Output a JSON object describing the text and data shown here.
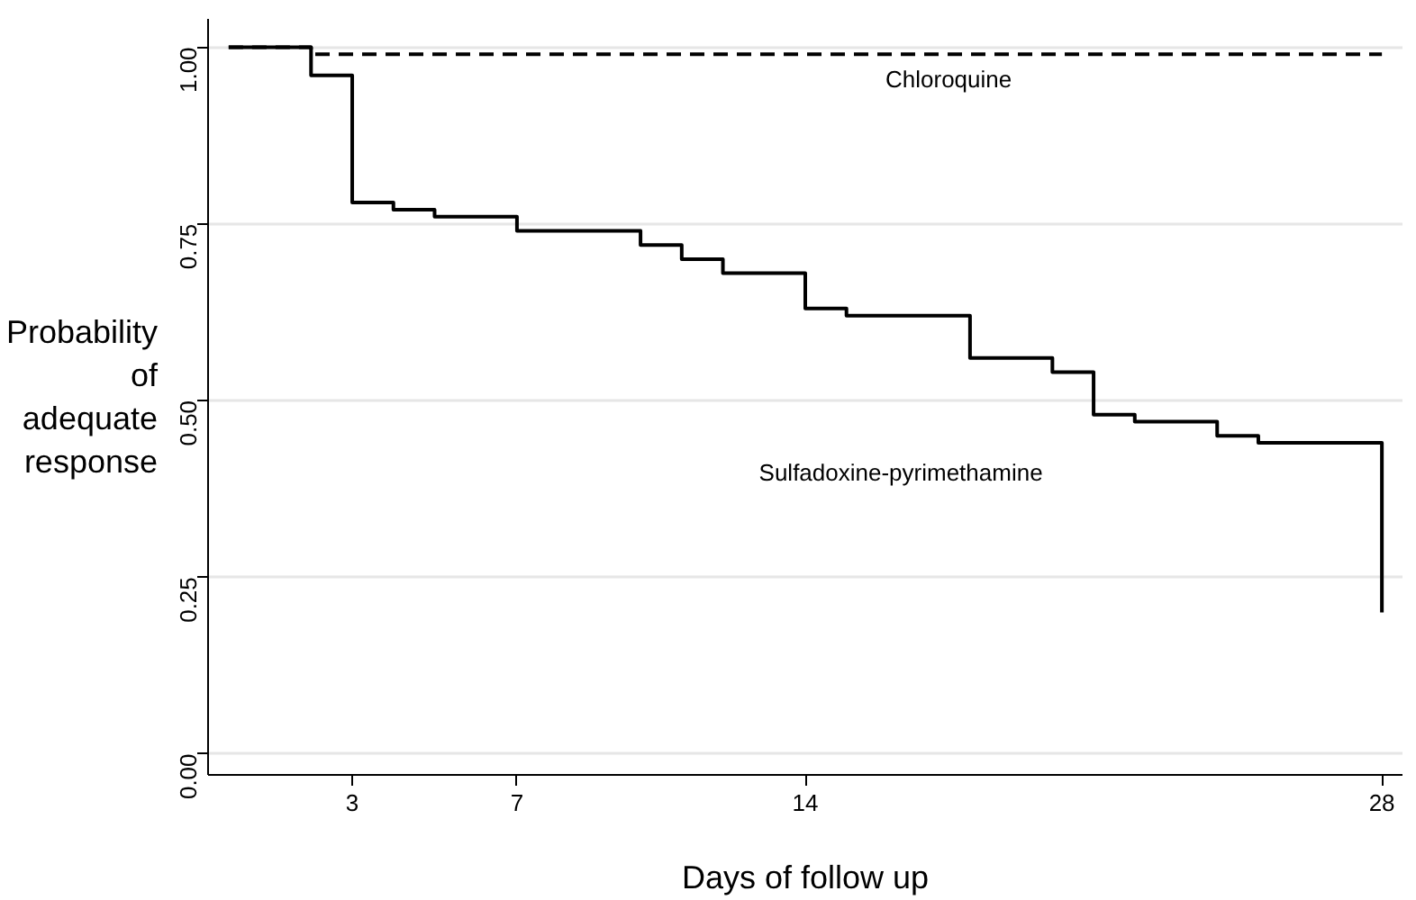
{
  "chart_data": {
    "type": "step",
    "xlabel": "Days of follow up",
    "ylabel": "Probability of adequate response",
    "series": [
      {
        "color": "#000000",
        "line_style": "solid",
        "x": [
          0,
          2,
          3,
          4,
          5,
          7,
          10,
          11,
          12,
          14,
          15,
          18,
          20,
          21,
          22,
          24,
          25,
          28
        ],
        "values": [
          1.0,
          0.96,
          0.78,
          0.77,
          0.76,
          0.74,
          0.72,
          0.7,
          0.68,
          0.63,
          0.62,
          0.56,
          0.54,
          0.48,
          0.47,
          0.45,
          0.44,
          0.2
        ]
      },
      {
        "color": "#000000",
        "line_style": "dashed",
        "x": [
          0,
          2,
          28
        ],
        "values": [
          1.0,
          0.99,
          0.99
        ]
      }
    ],
    "annotations": [
      "Chloroquine",
      "Sulfadoxine-pyrimethamine"
    ],
    "xlim": [
      -0.5,
      28.5
    ],
    "ylim": [
      -0.03,
      1.04
    ],
    "xticks": [
      3,
      7,
      14,
      28
    ],
    "yticks": [
      {
        "value": 0,
        "label": "0.00"
      },
      {
        "value": 0.25,
        "label": "0.25"
      },
      {
        "value": 0.5,
        "label": "0.50"
      },
      {
        "value": 0.75,
        "label": "0.75"
      },
      {
        "value": 1,
        "label": "1.00"
      }
    ],
    "grid": "y"
  }
}
